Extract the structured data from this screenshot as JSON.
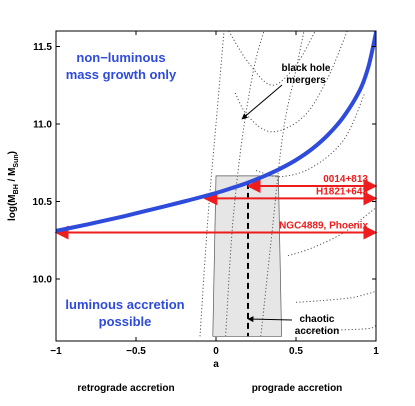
{
  "chart_data": {
    "type": "line",
    "title": "",
    "xlabel": "a",
    "ylabel": "log(M_BH / M_Sun)",
    "xlim": [
      -1,
      1
    ],
    "ylim": [
      9.6,
      11.6
    ],
    "x_ticks": [
      -1,
      -0.5,
      0,
      0.5,
      1
    ],
    "x_tick_labels": [
      "−1",
      "−0.5",
      "0",
      "0.5",
      "1"
    ],
    "y_ticks": [
      10.0,
      10.5,
      11.0,
      11.5
    ],
    "y_tick_labels": [
      "10.0",
      "10.5",
      "11.0",
      "11.5"
    ],
    "grid": false,
    "boundary_curve": {
      "color": "#2e4bdc",
      "x": [
        -1.0,
        -0.8,
        -0.6,
        -0.4,
        -0.2,
        0.0,
        0.1,
        0.2,
        0.3,
        0.4,
        0.5,
        0.6,
        0.7,
        0.8,
        0.9,
        0.95,
        0.98,
        1.0
      ],
      "y": [
        10.31,
        10.353,
        10.399,
        10.449,
        10.5,
        10.555,
        10.587,
        10.622,
        10.663,
        10.711,
        10.768,
        10.839,
        10.93,
        11.05,
        11.22,
        11.36,
        11.49,
        11.59
      ]
    },
    "merger_curves": {
      "color": "#555555",
      "curves": [
        {
          "x": [
            -0.1,
            -0.05,
            0.0,
            0.05
          ],
          "y": [
            9.63,
            10.4,
            11.0,
            11.6
          ]
        },
        {
          "x": [
            0.06,
            0.1,
            0.15,
            0.2,
            0.25,
            0.3
          ],
          "y": [
            9.63,
            10.3,
            10.8,
            11.15,
            11.42,
            11.6
          ]
        },
        {
          "x": [
            0.28,
            0.35,
            0.42,
            0.5,
            0.55
          ],
          "y": [
            9.63,
            10.3,
            10.95,
            11.35,
            11.6
          ]
        },
        {
          "x": [
            0.08,
            0.2,
            0.35,
            0.5,
            0.62
          ],
          "y": [
            11.6,
            11.4,
            11.25,
            11.38,
            11.6
          ]
        },
        {
          "x": [
            0.12,
            0.2,
            0.35,
            0.55,
            0.7,
            0.82
          ],
          "y": [
            11.2,
            11.05,
            10.95,
            11.05,
            11.3,
            11.6
          ]
        },
        {
          "x": [
            0.25,
            0.4,
            0.6,
            0.8,
            0.93
          ],
          "y": [
            10.7,
            10.66,
            10.72,
            10.9,
            11.2
          ]
        },
        {
          "x": [
            0.45,
            0.6,
            0.8,
            0.95,
            1.0
          ],
          "y": [
            10.15,
            10.2,
            10.3,
            10.42,
            10.46
          ]
        },
        {
          "x": [
            0.5,
            0.65,
            0.85,
            1.0
          ],
          "y": [
            9.85,
            9.86,
            9.88,
            9.92
          ]
        },
        {
          "x": [
            0.55,
            0.75,
            0.95,
            1.0
          ],
          "y": [
            9.66,
            9.67,
            9.68,
            9.7
          ]
        }
      ]
    },
    "chaotic_band": {
      "x_left": [
        0.0,
        -0.02
      ],
      "x_right": [
        0.39,
        0.41
      ],
      "y_bottom": 9.63,
      "y_top": 10.665,
      "color": "#e6e6e6"
    },
    "chaotic_line": {
      "x": 0.2,
      "y": [
        9.63,
        10.62
      ]
    },
    "arrows": {
      "color": "#ee1c1c",
      "items": [
        {
          "label": "0014+813",
          "x_start": 0.2,
          "x_end": 1.0,
          "y": 10.6
        },
        {
          "label": "H1821+643",
          "x_start": -0.07,
          "x_end": 1.0,
          "y": 10.52
        },
        {
          "label": "NGC4889, Phoenix",
          "x_start": -1.0,
          "x_end": 1.0,
          "y": 10.3
        }
      ]
    },
    "annotations": {
      "top_region": [
        "non−luminous",
        "mass growth only"
      ],
      "bottom_region": [
        "luminous accretion",
        "possible"
      ],
      "mergers": [
        "black hole",
        "mergers"
      ],
      "chaotic": [
        "chaotic",
        "accretion"
      ],
      "retrograde": "retrograde accretion",
      "prograde": "prograde accretion"
    }
  }
}
